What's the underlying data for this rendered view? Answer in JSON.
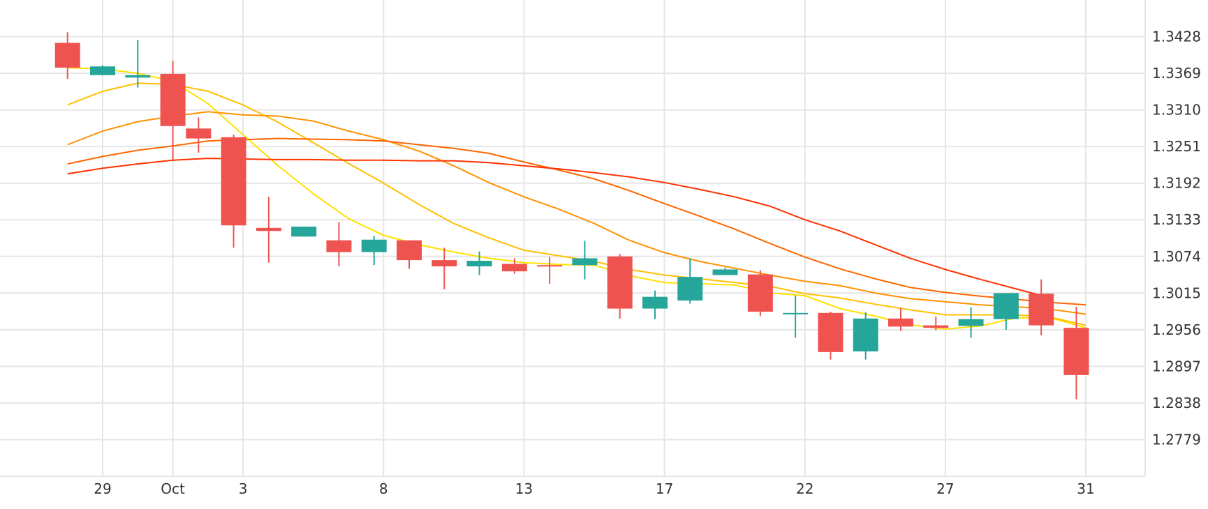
{
  "chart_data": {
    "type": "candlestick",
    "title": "",
    "xlabel": "",
    "ylabel": "",
    "ylim": [
      1.272,
      1.3487
    ],
    "grid": true,
    "y_axis_side": "right",
    "y_ticks": [
      "1.3428",
      "1.3369",
      "1.3310",
      "1.3251",
      "1.3192",
      "1.3133",
      "1.3074",
      "1.3015",
      "1.2956",
      "1.2897",
      "1.2838",
      "1.2779"
    ],
    "x_ticks": [
      {
        "label": "29",
        "day": 29
      },
      {
        "label": "Oct",
        "day": 31
      },
      {
        "label": "3",
        "day": 33
      },
      {
        "label": "8",
        "day": 37
      },
      {
        "label": "13",
        "day": 41
      },
      {
        "label": "17",
        "day": 45
      },
      {
        "label": "22",
        "day": 49
      },
      {
        "label": "27",
        "day": 53
      },
      {
        "label": "31",
        "day": 57
      }
    ],
    "colors": {
      "up": "#26a69a",
      "down": "#ef5350"
    },
    "candles": [
      {
        "day": 28.0,
        "open": 1.3418,
        "high": 1.3435,
        "low": 1.336,
        "close": 1.3378
      },
      {
        "day": 29.0,
        "open": 1.3366,
        "high": 1.3382,
        "low": 1.3366,
        "close": 1.338
      },
      {
        "day": 30.0,
        "open": 1.3362,
        "high": 1.3423,
        "low": 1.3346,
        "close": 1.3366
      },
      {
        "day": 31.0,
        "open": 1.3368,
        "high": 1.3389,
        "low": 1.323,
        "close": 1.3284
      },
      {
        "day": 31.73,
        "open": 1.328,
        "high": 1.3298,
        "low": 1.3241,
        "close": 1.3264
      },
      {
        "day": 32.73,
        "open": 1.3266,
        "high": 1.327,
        "low": 1.3088,
        "close": 1.3124
      },
      {
        "day": 33.73,
        "open": 1.312,
        "high": 1.317,
        "low": 1.3064,
        "close": 1.3115
      },
      {
        "day": 34.73,
        "open": 1.3106,
        "high": 1.3122,
        "low": 1.3106,
        "close": 1.3122
      },
      {
        "day": 35.73,
        "open": 1.31,
        "high": 1.3129,
        "low": 1.3058,
        "close": 1.3081
      },
      {
        "day": 36.73,
        "open": 1.3081,
        "high": 1.3107,
        "low": 1.306,
        "close": 1.3101
      },
      {
        "day": 37.73,
        "open": 1.31,
        "high": 1.31,
        "low": 1.3054,
        "close": 1.3068
      },
      {
        "day": 38.73,
        "open": 1.3068,
        "high": 1.3088,
        "low": 1.3021,
        "close": 1.3058
      },
      {
        "day": 39.73,
        "open": 1.3058,
        "high": 1.3082,
        "low": 1.3044,
        "close": 1.3067
      },
      {
        "day": 40.73,
        "open": 1.3062,
        "high": 1.3071,
        "low": 1.3046,
        "close": 1.305
      },
      {
        "day": 41.73,
        "open": 1.306,
        "high": 1.3073,
        "low": 1.303,
        "close": 1.3059
      },
      {
        "day": 42.73,
        "open": 1.306,
        "high": 1.3099,
        "low": 1.3037,
        "close": 1.3071
      },
      {
        "day": 43.73,
        "open": 1.3074,
        "high": 1.3078,
        "low": 1.2974,
        "close": 1.299
      },
      {
        "day": 44.73,
        "open": 1.299,
        "high": 1.3019,
        "low": 1.2973,
        "close": 1.3009
      },
      {
        "day": 45.73,
        "open": 1.3003,
        "high": 1.3071,
        "low": 1.2998,
        "close": 1.3041
      },
      {
        "day": 46.73,
        "open": 1.3044,
        "high": 1.3056,
        "low": 1.3044,
        "close": 1.3053
      },
      {
        "day": 47.73,
        "open": 1.3045,
        "high": 1.3052,
        "low": 1.2978,
        "close": 1.2985
      },
      {
        "day": 48.73,
        "open": 1.2983,
        "high": 1.3011,
        "low": 1.2943,
        "close": 1.2983
      },
      {
        "day": 49.73,
        "open": 1.2983,
        "high": 1.2985,
        "low": 1.2908,
        "close": 1.292
      },
      {
        "day": 50.73,
        "open": 1.2921,
        "high": 1.2984,
        "low": 1.2908,
        "close": 1.2974
      },
      {
        "day": 51.73,
        "open": 1.2974,
        "high": 1.2991,
        "low": 1.2954,
        "close": 1.2961
      },
      {
        "day": 52.73,
        "open": 1.2963,
        "high": 1.2977,
        "low": 1.2955,
        "close": 1.2959
      },
      {
        "day": 53.73,
        "open": 1.2962,
        "high": 1.2992,
        "low": 1.2943,
        "close": 1.2973
      },
      {
        "day": 54.73,
        "open": 1.2973,
        "high": 1.3015,
        "low": 1.2956,
        "close": 1.3015
      },
      {
        "day": 55.73,
        "open": 1.3014,
        "high": 1.3037,
        "low": 1.2947,
        "close": 1.2963
      },
      {
        "day": 56.73,
        "open": 1.2959,
        "high": 1.2993,
        "low": 1.2844,
        "close": 1.2883
      }
    ],
    "moving_averages": [
      {
        "color": "#ffe000",
        "points": [
          [
            28.0,
            1.3378
          ],
          [
            29.0,
            1.3376
          ],
          [
            30.0,
            1.3369
          ],
          [
            31.0,
            1.3356
          ],
          [
            32.0,
            1.332
          ],
          [
            33.0,
            1.327
          ],
          [
            34.0,
            1.322
          ],
          [
            35.0,
            1.3175
          ],
          [
            36.0,
            1.3135
          ],
          [
            37.0,
            1.3108
          ],
          [
            38.0,
            1.3093
          ],
          [
            39.0,
            1.3081
          ],
          [
            40.0,
            1.3071
          ],
          [
            41.0,
            1.3064
          ],
          [
            42.0,
            1.3061
          ],
          [
            43.0,
            1.306
          ],
          [
            44.0,
            1.3043
          ],
          [
            45.0,
            1.3032
          ],
          [
            46.0,
            1.303
          ],
          [
            47.0,
            1.3028
          ],
          [
            48.0,
            1.3015
          ],
          [
            49.0,
            1.3011
          ],
          [
            50.0,
            1.299
          ],
          [
            51.0,
            1.2978
          ],
          [
            52.0,
            1.2964
          ],
          [
            53.0,
            1.2957
          ],
          [
            54.0,
            1.2962
          ],
          [
            55.0,
            1.2975
          ],
          [
            56.0,
            1.2975
          ],
          [
            57.0,
            1.2959
          ]
        ]
      },
      {
        "color": "#ffc000",
        "points": [
          [
            28.0,
            1.3318
          ],
          [
            29.0,
            1.334
          ],
          [
            30.0,
            1.3353
          ],
          [
            31.0,
            1.3351
          ],
          [
            32.0,
            1.334
          ],
          [
            33.0,
            1.3318
          ],
          [
            34.0,
            1.329
          ],
          [
            35.0,
            1.3257
          ],
          [
            36.0,
            1.3224
          ],
          [
            37.0,
            1.3192
          ],
          [
            38.0,
            1.3158
          ],
          [
            39.0,
            1.3127
          ],
          [
            40.0,
            1.3104
          ],
          [
            41.0,
            1.3084
          ],
          [
            42.0,
            1.3075
          ],
          [
            43.0,
            1.3066
          ],
          [
            44.0,
            1.3053
          ],
          [
            45.0,
            1.3044
          ],
          [
            46.0,
            1.3038
          ],
          [
            47.0,
            1.3032
          ],
          [
            48.0,
            1.3026
          ],
          [
            49.0,
            1.3014
          ],
          [
            50.0,
            1.3007
          ],
          [
            51.0,
            1.2997
          ],
          [
            52.0,
            1.2988
          ],
          [
            53.0,
            1.298
          ],
          [
            54.0,
            1.298
          ],
          [
            55.0,
            1.298
          ],
          [
            56.0,
            1.2976
          ],
          [
            57.0,
            1.2963
          ]
        ]
      },
      {
        "color": "#ff9100",
        "points": [
          [
            28.0,
            1.3254
          ],
          [
            29.0,
            1.3276
          ],
          [
            30.0,
            1.3291
          ],
          [
            31.0,
            1.33
          ],
          [
            32.0,
            1.3307
          ],
          [
            33.0,
            1.3302
          ],
          [
            34.0,
            1.33
          ],
          [
            35.0,
            1.3292
          ],
          [
            36.0,
            1.3276
          ],
          [
            37.0,
            1.3262
          ],
          [
            38.0,
            1.3244
          ],
          [
            39.0,
            1.322
          ],
          [
            40.0,
            1.3193
          ],
          [
            41.0,
            1.317
          ],
          [
            42.0,
            1.315
          ],
          [
            43.0,
            1.3127
          ],
          [
            44.0,
            1.31
          ],
          [
            45.0,
            1.308
          ],
          [
            46.0,
            1.3066
          ],
          [
            47.0,
            1.3055
          ],
          [
            48.0,
            1.3044
          ],
          [
            49.0,
            1.3034
          ],
          [
            50.0,
            1.3027
          ],
          [
            51.0,
            1.3015
          ],
          [
            52.0,
            1.3006
          ],
          [
            53.0,
            1.3001
          ],
          [
            54.0,
            1.2996
          ],
          [
            55.0,
            1.2993
          ],
          [
            56.0,
            1.2989
          ],
          [
            57.0,
            1.2981
          ]
        ]
      },
      {
        "color": "#ff6600",
        "points": [
          [
            28.0,
            1.3223
          ],
          [
            29.0,
            1.3235
          ],
          [
            30.0,
            1.3245
          ],
          [
            31.0,
            1.3252
          ],
          [
            32.0,
            1.326
          ],
          [
            33.0,
            1.3262
          ],
          [
            34.0,
            1.3264
          ],
          [
            35.0,
            1.3263
          ],
          [
            36.0,
            1.3262
          ],
          [
            37.0,
            1.326
          ],
          [
            38.0,
            1.3254
          ],
          [
            39.0,
            1.3248
          ],
          [
            40.0,
            1.324
          ],
          [
            41.0,
            1.3226
          ],
          [
            42.0,
            1.3213
          ],
          [
            43.0,
            1.3199
          ],
          [
            44.0,
            1.318
          ],
          [
            45.0,
            1.3159
          ],
          [
            46.0,
            1.3139
          ],
          [
            47.0,
            1.3118
          ],
          [
            48.0,
            1.3095
          ],
          [
            49.0,
            1.3073
          ],
          [
            50.0,
            1.3054
          ],
          [
            51.0,
            1.3038
          ],
          [
            52.0,
            1.3024
          ],
          [
            53.0,
            1.3016
          ],
          [
            54.0,
            1.301
          ],
          [
            55.0,
            1.3005
          ],
          [
            56.0,
            1.3
          ],
          [
            57.0,
            1.2996
          ]
        ]
      },
      {
        "color": "#ff3300",
        "points": [
          [
            28.0,
            1.3207
          ],
          [
            29.0,
            1.3216
          ],
          [
            30.0,
            1.3223
          ],
          [
            31.0,
            1.3229
          ],
          [
            32.0,
            1.3232
          ],
          [
            33.0,
            1.3231
          ],
          [
            34.0,
            1.323
          ],
          [
            35.0,
            1.323
          ],
          [
            36.0,
            1.3229
          ],
          [
            37.0,
            1.3229
          ],
          [
            38.0,
            1.3228
          ],
          [
            39.0,
            1.3228
          ],
          [
            40.0,
            1.3225
          ],
          [
            41.0,
            1.322
          ],
          [
            42.0,
            1.3215
          ],
          [
            43.0,
            1.3209
          ],
          [
            44.0,
            1.3202
          ],
          [
            45.0,
            1.3193
          ],
          [
            46.0,
            1.3182
          ],
          [
            47.0,
            1.317
          ],
          [
            48.0,
            1.3155
          ],
          [
            49.0,
            1.3133
          ],
          [
            50.0,
            1.3115
          ],
          [
            51.0,
            1.3093
          ],
          [
            52.0,
            1.3071
          ],
          [
            53.0,
            1.3053
          ],
          [
            54.0,
            1.3037
          ],
          [
            55.0,
            1.3022
          ],
          [
            56.0,
            1.3007
          ]
        ]
      }
    ]
  }
}
